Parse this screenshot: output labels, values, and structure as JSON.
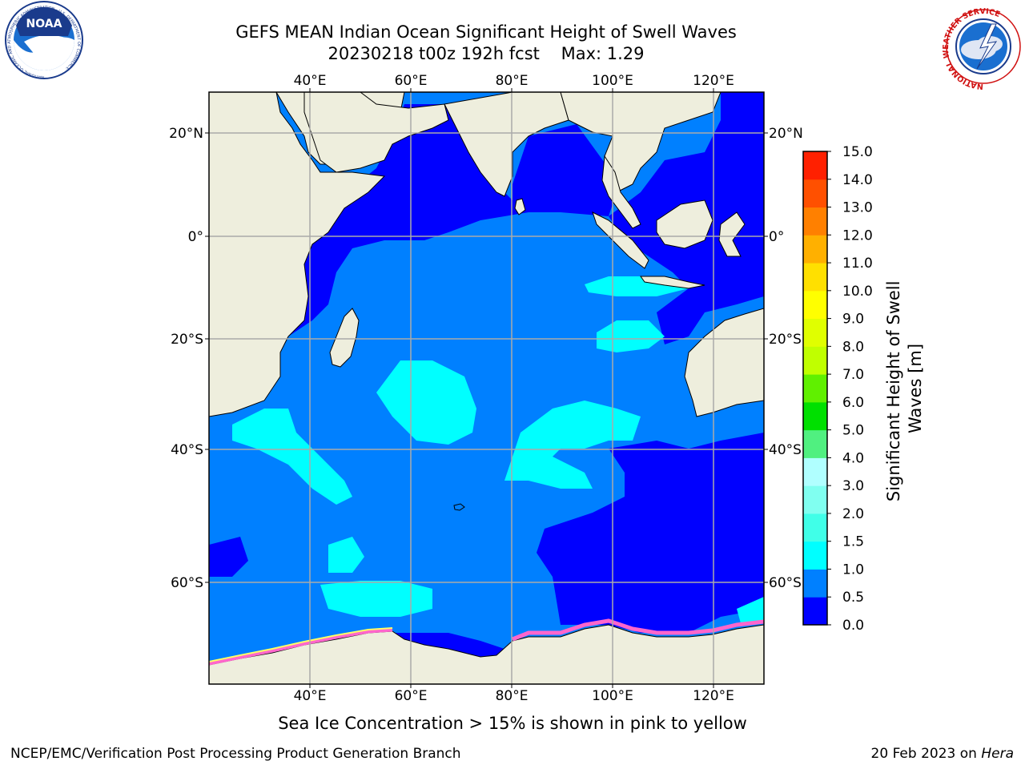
{
  "header": {
    "title": "GEFS MEAN Indian Ocean Significant Height of Swell Waves",
    "subtitle_date": "20230218 t00z 192h fcst",
    "subtitle_max": "Max: 1.29"
  },
  "logos": {
    "noaa_text": "NOAA",
    "noaa_ring": "NATIONAL OCEANIC AND ATMOSPHERIC ADMINISTRATION · U.S. DEPARTMENT OF COMMERCE",
    "nws_ring": "NATIONAL WEATHER SERVICE"
  },
  "map": {
    "lon_labels": [
      "40°E",
      "60°E",
      "80°E",
      "100°E",
      "120°E"
    ],
    "lat_labels_left": [
      "20°N",
      "0°",
      "20°S",
      "40°S",
      "60°S"
    ],
    "lat_labels_right": [
      "20°N",
      "0°",
      "20°S",
      "40°S",
      "60°S"
    ],
    "lon_range": [
      20,
      130
    ],
    "lat_range": [
      -77,
      30
    ],
    "colors": {
      "land": "#eeeedd",
      "sea_ice": "#ff66cc",
      "grid": "#aaaaaa"
    }
  },
  "colorbar": {
    "label": "Significant Height of Swell Waves [m]",
    "ticks": [
      "0.0",
      "0.5",
      "1.0",
      "1.5",
      "2.0",
      "3.0",
      "4.0",
      "5.0",
      "6.0",
      "7.0",
      "8.0",
      "9.0",
      "10.0",
      "11.0",
      "12.0",
      "13.0",
      "14.0",
      "15.0"
    ],
    "colors": [
      "#0000ff",
      "#0080ff",
      "#00ffff",
      "#40ffe8",
      "#80fff0",
      "#b0ffff",
      "#50f080",
      "#00e000",
      "#60f000",
      "#c0ff00",
      "#e0ff00",
      "#ffff00",
      "#ffe000",
      "#ffb000",
      "#ff8000",
      "#ff5000",
      "#ff2000"
    ]
  },
  "footer": {
    "note": "Sea Ice Concentration > 15% is shown in pink to yellow",
    "credit": "NCEP/EMC/Verification Post Processing Product Generation Branch",
    "date": "20 Feb 2023 on",
    "machine": "Hera"
  }
}
